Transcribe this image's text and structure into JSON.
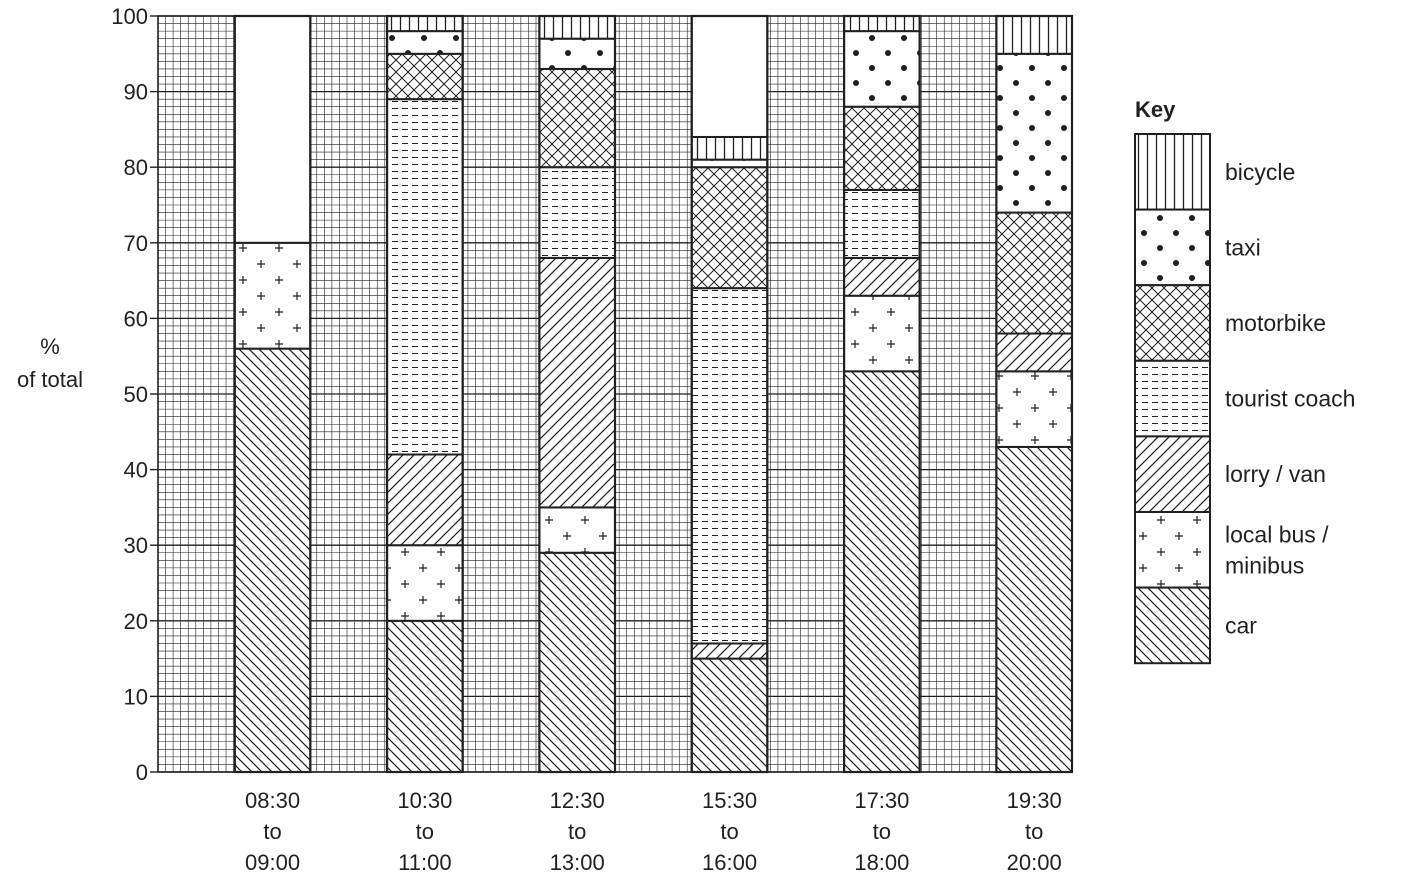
{
  "chart_data": {
    "type": "bar",
    "stacked": true,
    "ylabel": [
      "%",
      "of total"
    ],
    "ylim": [
      0,
      100
    ],
    "yticks": [
      "0",
      "10",
      "20",
      "30",
      "40",
      "50",
      "60",
      "70",
      "80",
      "90",
      "100"
    ],
    "grid": true,
    "legend_title": "Key",
    "legend_position": "right",
    "categories": [
      [
        "08:30",
        "to",
        "09:00"
      ],
      [
        "10:30",
        "to",
        "11:00"
      ],
      [
        "12:30",
        "to",
        "13:00"
      ],
      [
        "15:30",
        "to",
        "16:00"
      ],
      [
        "17:30",
        "to",
        "18:00"
      ],
      [
        "19:30",
        "to",
        "20:00"
      ]
    ],
    "series": [
      {
        "name": [
          "car"
        ],
        "pattern": "diagonal-down",
        "values": [
          56,
          20,
          29,
          15,
          53,
          43
        ]
      },
      {
        "name": [
          "local bus /",
          "minibus"
        ],
        "pattern": "plus",
        "values": [
          14,
          10,
          6,
          0,
          10,
          10
        ]
      },
      {
        "name": [
          "lorry / van"
        ],
        "pattern": "diagonal-up",
        "values": [
          0,
          12,
          33,
          2,
          5,
          5
        ]
      },
      {
        "name": [
          "tourist coach"
        ],
        "pattern": "dashes",
        "values": [
          0,
          47,
          12,
          47,
          9,
          0
        ]
      },
      {
        "name": [
          "motorbike"
        ],
        "pattern": "crosshatch",
        "values": [
          0,
          6,
          13,
          16,
          11,
          16
        ]
      },
      {
        "name": [
          "taxi"
        ],
        "pattern": "dots",
        "values": [
          0,
          3,
          4,
          1,
          10,
          21
        ]
      },
      {
        "name": [
          "bicycle"
        ],
        "pattern": "vertical",
        "values": [
          0,
          2,
          3,
          3,
          2,
          5
        ]
      }
    ]
  }
}
